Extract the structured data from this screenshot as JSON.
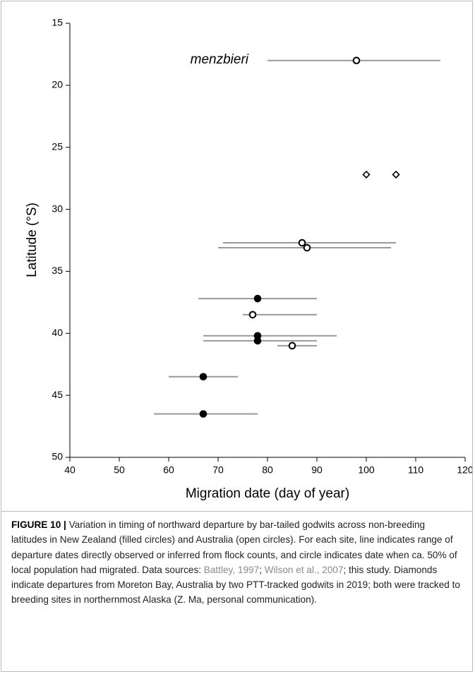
{
  "chart_data": {
    "type": "scatter",
    "xlabel": "Migration date (day of year)",
    "ylabel": "Latitude (°S)",
    "annotation": "menzbieri",
    "xlim": [
      40,
      120
    ],
    "xticks": [
      40,
      50,
      60,
      70,
      80,
      90,
      100,
      110,
      120
    ],
    "ylim": [
      50,
      15
    ],
    "yticks": [
      15,
      20,
      25,
      30,
      35,
      40,
      45,
      50
    ],
    "range_color": "#999999",
    "series": [
      {
        "marker": "open",
        "color": "#000000",
        "x": [
          98,
          87,
          88,
          77,
          85
        ],
        "y": [
          18,
          32.7,
          33.1,
          38.5,
          41
        ],
        "range_start": [
          80,
          71,
          70,
          75,
          82
        ],
        "range_end": [
          115,
          106,
          105,
          90,
          90
        ]
      },
      {
        "marker": "filled",
        "color": "#000000",
        "x": [
          78,
          78,
          78,
          67,
          67
        ],
        "y": [
          37.2,
          40.2,
          40.6,
          43.5,
          46.5
        ],
        "range_start": [
          66,
          67,
          67,
          60,
          57
        ],
        "range_end": [
          90,
          94,
          90,
          74,
          78
        ]
      },
      {
        "marker": "diamond",
        "color": "#000000",
        "x": [
          100,
          106
        ],
        "y": [
          27.2,
          27.2
        ]
      }
    ]
  },
  "caption": {
    "label": "FIGURE 10 |",
    "text_1": " Variation in timing of northward departure by bar-tailed godwits across non-breeding latitudes in New Zealand (filled circles) and Australia (open circles). For each site, line indicates range of departure dates directly observed or inferred from flock counts, and circle indicates date when ca. 50% of local population had migrated. Data sources: ",
    "link_1": "Battley, 1997",
    "text_2": "; ",
    "link_2": "Wilson et al., 2007",
    "text_3": "; this study. Diamonds indicate departures from Moreton Bay, Australia by two PTT-tracked godwits in 2019; both were tracked to breeding sites in northernmost Alaska (Z. Ma, personal communication)."
  }
}
